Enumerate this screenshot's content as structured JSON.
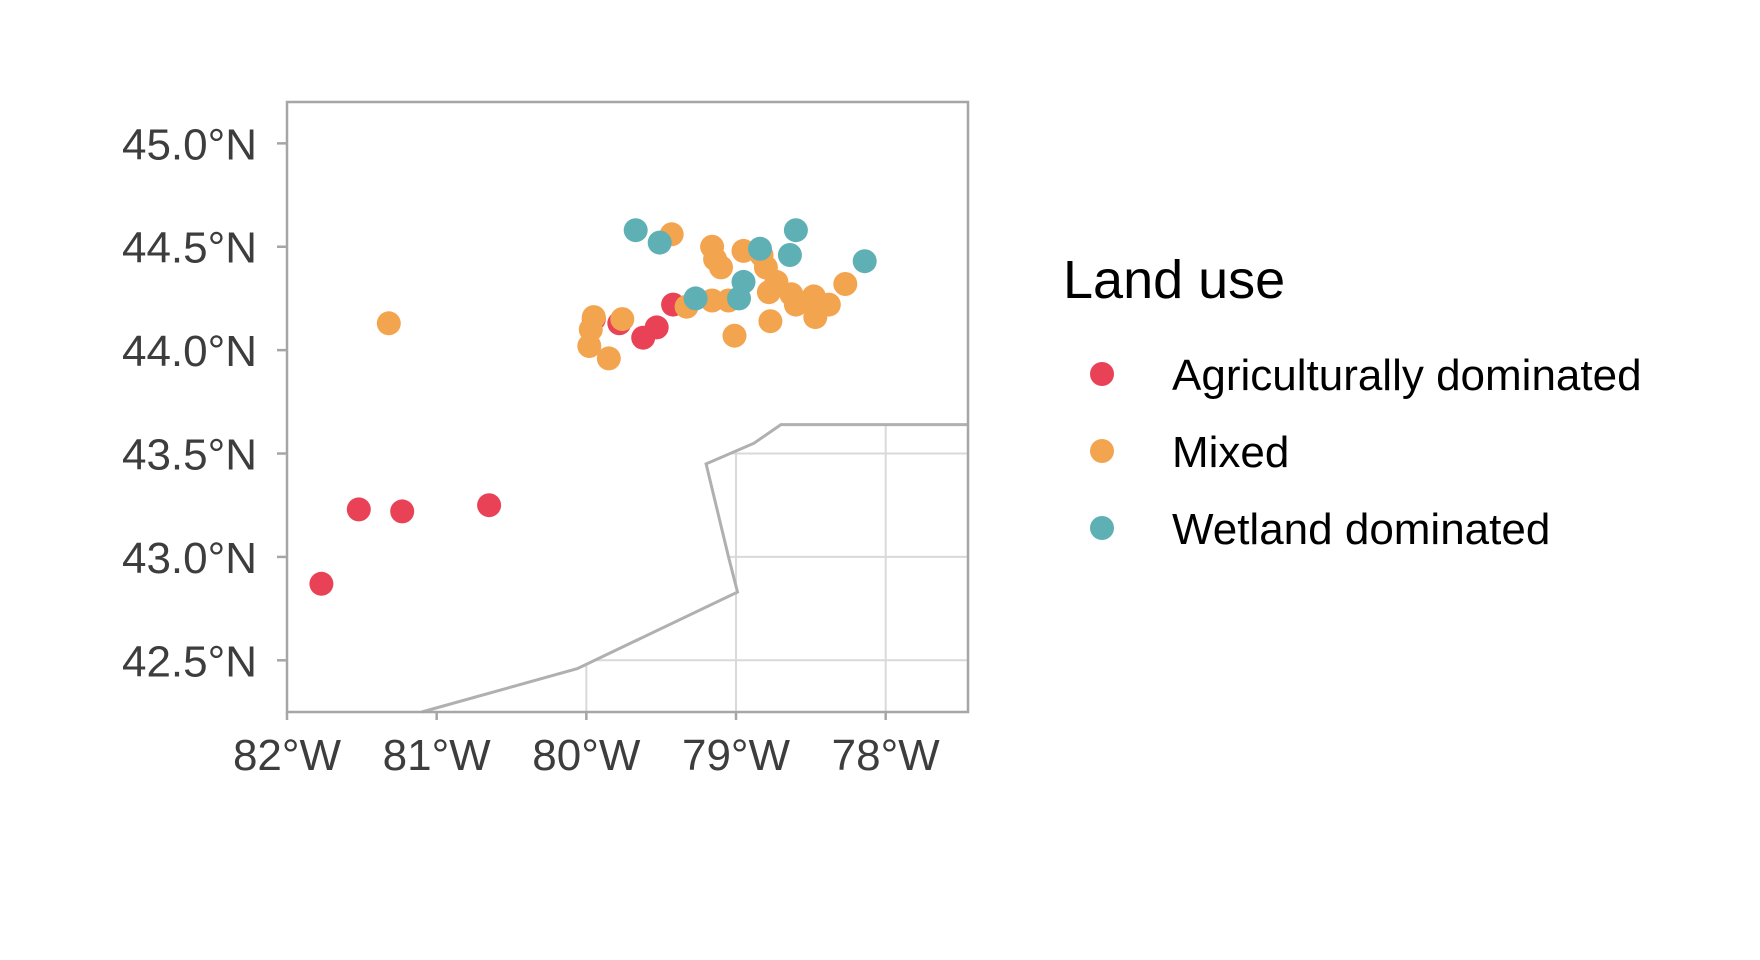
{
  "chart_data": {
    "type": "scatter",
    "title": "",
    "xlabel": "",
    "ylabel": "",
    "xlim": [
      -82.0,
      -77.45
    ],
    "ylim": [
      42.25,
      45.2
    ],
    "x_ticks": [
      {
        "value": -82,
        "label": "82°W"
      },
      {
        "value": -81,
        "label": "81°W"
      },
      {
        "value": -80,
        "label": "80°W"
      },
      {
        "value": -79,
        "label": "79°W"
      },
      {
        "value": -78,
        "label": "78°W"
      }
    ],
    "y_ticks": [
      {
        "value": 42.5,
        "label": "42.5°N"
      },
      {
        "value": 43.0,
        "label": "43.0°N"
      },
      {
        "value": 43.5,
        "label": "43.5°N"
      },
      {
        "value": 44.0,
        "label": "44.0°N"
      },
      {
        "value": 44.5,
        "label": "44.5°N"
      },
      {
        "value": 45.0,
        "label": "45.0°N"
      }
    ],
    "grid": "graticule visible only over the lake region",
    "graticule_lon": [
      -80,
      -79,
      -78
    ],
    "graticule_lat": [
      42.5,
      43.0,
      43.5
    ],
    "shoreline": [
      [
        -81.1,
        42.25
      ],
      [
        -80.06,
        42.46
      ],
      [
        -78.99,
        42.83
      ],
      [
        -79.05,
        43.0
      ],
      [
        -79.2,
        43.45
      ],
      [
        -78.88,
        43.55
      ],
      [
        -78.7,
        43.64
      ],
      [
        -77.45,
        43.64
      ]
    ],
    "legend": {
      "title": "Land use",
      "position": "right"
    },
    "series": [
      {
        "name": "Agriculturally dominated",
        "color": "#e94256",
        "points": [
          [
            -81.77,
            42.87
          ],
          [
            -81.52,
            43.23
          ],
          [
            -81.23,
            43.22
          ],
          [
            -80.65,
            43.25
          ],
          [
            -79.95,
            44.15
          ],
          [
            -79.78,
            44.13
          ],
          [
            -79.62,
            44.06
          ],
          [
            -79.53,
            44.11
          ],
          [
            -79.42,
            44.22
          ]
        ]
      },
      {
        "name": "Mixed",
        "color": "#f3a44f",
        "points": [
          [
            -81.32,
            44.13
          ],
          [
            -79.98,
            44.02
          ],
          [
            -79.97,
            44.1
          ],
          [
            -79.95,
            44.16
          ],
          [
            -79.85,
            43.96
          ],
          [
            -79.76,
            44.15
          ],
          [
            -79.43,
            44.56
          ],
          [
            -79.33,
            44.21
          ],
          [
            -79.16,
            44.5
          ],
          [
            -79.14,
            44.44
          ],
          [
            -79.1,
            44.4
          ],
          [
            -79.16,
            44.24
          ],
          [
            -79.05,
            44.24
          ],
          [
            -79.01,
            44.07
          ],
          [
            -78.95,
            44.48
          ],
          [
            -78.83,
            44.46
          ],
          [
            -78.8,
            44.4
          ],
          [
            -78.78,
            44.28
          ],
          [
            -78.77,
            44.14
          ],
          [
            -78.73,
            44.33
          ],
          [
            -78.63,
            44.27
          ],
          [
            -78.6,
            44.22
          ],
          [
            -78.48,
            44.26
          ],
          [
            -78.47,
            44.22
          ],
          [
            -78.47,
            44.16
          ],
          [
            -78.38,
            44.22
          ],
          [
            -78.27,
            44.32
          ]
        ]
      },
      {
        "name": "Wetland dominated",
        "color": "#5fb0b4",
        "points": [
          [
            -79.67,
            44.58
          ],
          [
            -79.51,
            44.52
          ],
          [
            -79.27,
            44.25
          ],
          [
            -78.98,
            44.25
          ],
          [
            -78.95,
            44.33
          ],
          [
            -78.84,
            44.49
          ],
          [
            -78.64,
            44.46
          ],
          [
            -78.6,
            44.58
          ],
          [
            -78.14,
            44.43
          ]
        ]
      }
    ]
  }
}
